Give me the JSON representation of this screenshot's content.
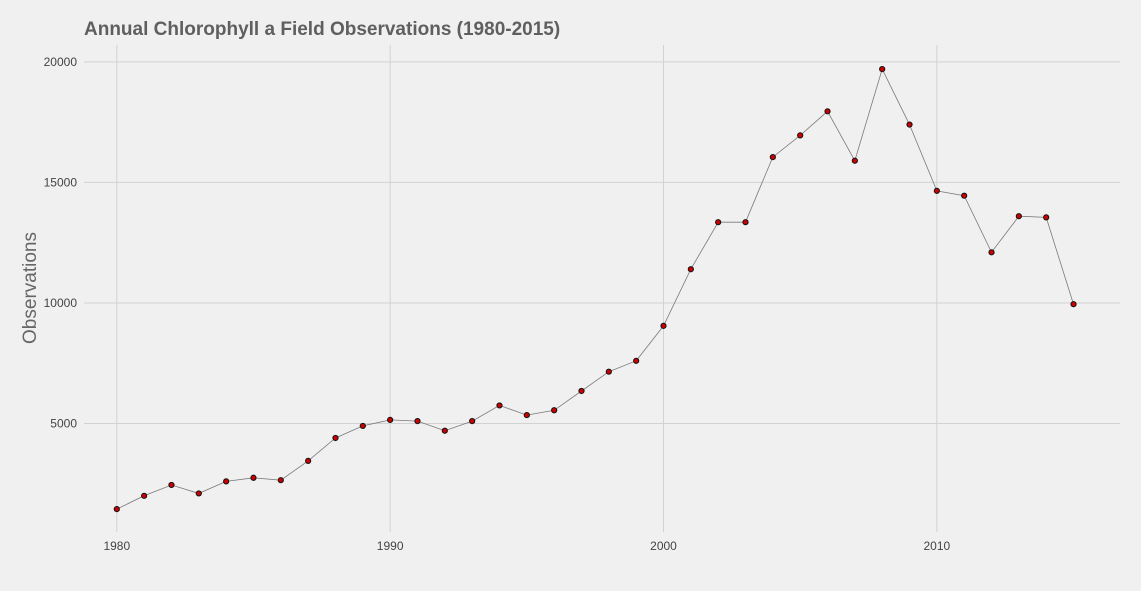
{
  "chart_data": {
    "type": "line",
    "title": "Annual Chlorophyll a Field Observations (1980-2015)",
    "xlabel": "",
    "ylabel": "Observations",
    "xlim": [
      1978.8,
      2016.7
    ],
    "ylim": [
      500,
      20700
    ],
    "x_ticks": [
      1980,
      1990,
      2000,
      2010
    ],
    "y_ticks": [
      5000,
      10000,
      15000,
      20000
    ],
    "grid": true,
    "point_color": "#cc0000",
    "line_color": "#7a7a7a",
    "x": [
      1980,
      1981,
      1982,
      1983,
      1984,
      1985,
      1986,
      1987,
      1988,
      1989,
      1990,
      1991,
      1992,
      1993,
      1994,
      1995,
      1996,
      1997,
      1998,
      1999,
      2000,
      2001,
      2002,
      2003,
      2004,
      2005,
      2006,
      2007,
      2008,
      2009,
      2010,
      2011,
      2012,
      2013,
      2014,
      2015
    ],
    "values": [
      1450,
      2000,
      2450,
      2100,
      2600,
      2750,
      2650,
      3450,
      4400,
      4900,
      5150,
      5100,
      4700,
      5100,
      5750,
      5350,
      5550,
      6350,
      7150,
      7600,
      9050,
      11400,
      13350,
      13350,
      16050,
      16950,
      17950,
      15900,
      19700,
      17400,
      14650,
      14450,
      12100,
      13600,
      13550,
      9950
    ]
  }
}
